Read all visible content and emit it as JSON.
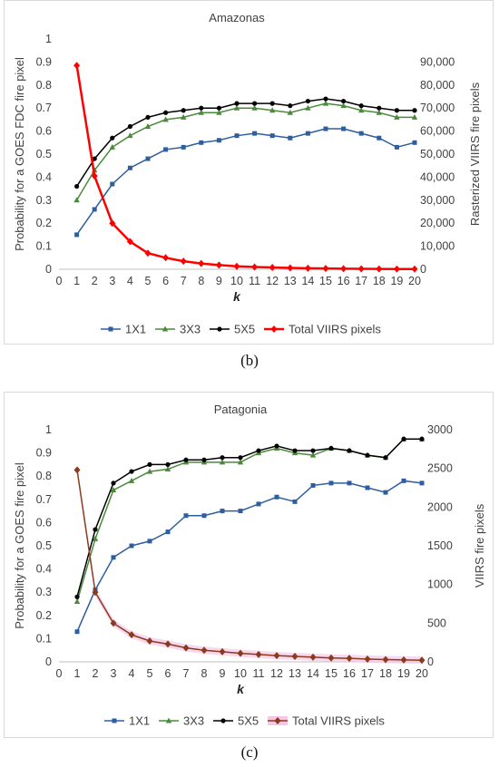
{
  "figure_labels": {
    "b": "(b)",
    "c": "(c)"
  },
  "chart_data": [
    {
      "type": "line",
      "title": "Amazonas",
      "xlabel": "k",
      "ylabel": "Probability for a GOES FDC fire pixel",
      "y2label": "Rasterized VIIRS fire pixels",
      "x": [
        1,
        2,
        3,
        4,
        5,
        6,
        7,
        8,
        9,
        10,
        11,
        12,
        13,
        14,
        15,
        16,
        17,
        18,
        19,
        20
      ],
      "xlim": [
        0,
        20
      ],
      "ylim": [
        0,
        1
      ],
      "y2lim": [
        0,
        100000
      ],
      "yticks": [
        "0",
        "0.1",
        "0.2",
        "0.3",
        "0.4",
        "0.5",
        "0.6",
        "0.7",
        "0.8",
        "0.9",
        "1"
      ],
      "y2ticks": [
        "0",
        "10,000",
        "20,000",
        "30,000",
        "40,000",
        "50,000",
        "60,000",
        "70,000",
        "80,000",
        "90,000"
      ],
      "grid": false,
      "legend": "bottom",
      "series": [
        {
          "name": "1X1",
          "axis": "left",
          "color": "#2e5e9e",
          "marker": "square",
          "values": [
            0.15,
            0.26,
            0.37,
            0.44,
            0.48,
            0.52,
            0.53,
            0.55,
            0.56,
            0.58,
            0.59,
            0.58,
            0.57,
            0.59,
            0.61,
            0.61,
            0.59,
            0.57,
            0.53,
            0.55
          ]
        },
        {
          "name": "3X3",
          "axis": "left",
          "color": "#4b8a3a",
          "marker": "triangle",
          "values": [
            0.3,
            0.43,
            0.53,
            0.58,
            0.62,
            0.65,
            0.66,
            0.68,
            0.68,
            0.7,
            0.7,
            0.69,
            0.68,
            0.7,
            0.72,
            0.71,
            0.69,
            0.68,
            0.66,
            0.66
          ]
        },
        {
          "name": "5X5",
          "axis": "left",
          "color": "#000000",
          "marker": "circle",
          "values": [
            0.36,
            0.48,
            0.57,
            0.62,
            0.66,
            0.68,
            0.69,
            0.7,
            0.7,
            0.72,
            0.72,
            0.72,
            0.71,
            0.73,
            0.74,
            0.73,
            0.71,
            0.7,
            0.69,
            0.69
          ]
        },
        {
          "name": "Total VIIRS pixels",
          "axis": "right",
          "color": "#ff0000",
          "marker": "diamond",
          "line_width": 2.5,
          "values": [
            88500,
            40500,
            20000,
            12000,
            7000,
            5000,
            3500,
            2500,
            1800,
            1300,
            1000,
            800,
            600,
            450,
            350,
            250,
            180,
            130,
            100,
            80
          ]
        }
      ]
    },
    {
      "type": "line",
      "title": "Patagonia",
      "xlabel": "k",
      "ylabel": "Probability for a GOES fire pixel",
      "y2label": "VIIRS fire pixels",
      "x": [
        1,
        2,
        3,
        4,
        5,
        6,
        7,
        8,
        9,
        10,
        11,
        12,
        13,
        14,
        15,
        16,
        17,
        18,
        19,
        20
      ],
      "xlim": [
        0,
        20
      ],
      "ylim": [
        0,
        1
      ],
      "y2lim": [
        0,
        3000
      ],
      "yticks": [
        "0",
        "0.1",
        "0.2",
        "0.3",
        "0.4",
        "0.5",
        "0.6",
        "0.7",
        "0.8",
        "0.9",
        "1"
      ],
      "y2ticks": [
        "0",
        "500",
        "1000",
        "1500",
        "2000",
        "2500",
        "3000"
      ],
      "grid": false,
      "legend": "bottom",
      "series": [
        {
          "name": "1X1",
          "axis": "left",
          "color": "#2e5e9e",
          "marker": "square",
          "values": [
            0.13,
            0.31,
            0.45,
            0.5,
            0.52,
            0.56,
            0.63,
            0.63,
            0.65,
            0.65,
            0.68,
            0.71,
            0.69,
            0.76,
            0.77,
            0.77,
            0.75,
            0.73,
            0.78,
            0.77
          ]
        },
        {
          "name": "3X3",
          "axis": "left",
          "color": "#4b8a3a",
          "marker": "triangle",
          "values": [
            0.26,
            0.53,
            0.74,
            0.78,
            0.82,
            0.83,
            0.86,
            0.86,
            0.86,
            0.86,
            0.9,
            0.92,
            0.9,
            0.89,
            0.92,
            0.91,
            0.89,
            0.88,
            0.96,
            0.96
          ]
        },
        {
          "name": "5X5",
          "axis": "left",
          "color": "#000000",
          "marker": "circle",
          "values": [
            0.28,
            0.57,
            0.77,
            0.82,
            0.85,
            0.85,
            0.87,
            0.87,
            0.88,
            0.88,
            0.91,
            0.93,
            0.91,
            0.91,
            0.92,
            0.91,
            0.89,
            0.88,
            0.96,
            0.96
          ]
        },
        {
          "name": "Total VIIRS pixels",
          "axis": "right",
          "color": "#8b3a1e",
          "marker": "diamond",
          "band_color": "#f7c6e6",
          "line_width": 1.5,
          "values": [
            2480,
            900,
            500,
            350,
            270,
            230,
            180,
            150,
            130,
            110,
            95,
            80,
            70,
            60,
            50,
            45,
            35,
            30,
            25,
            20
          ]
        }
      ]
    }
  ]
}
